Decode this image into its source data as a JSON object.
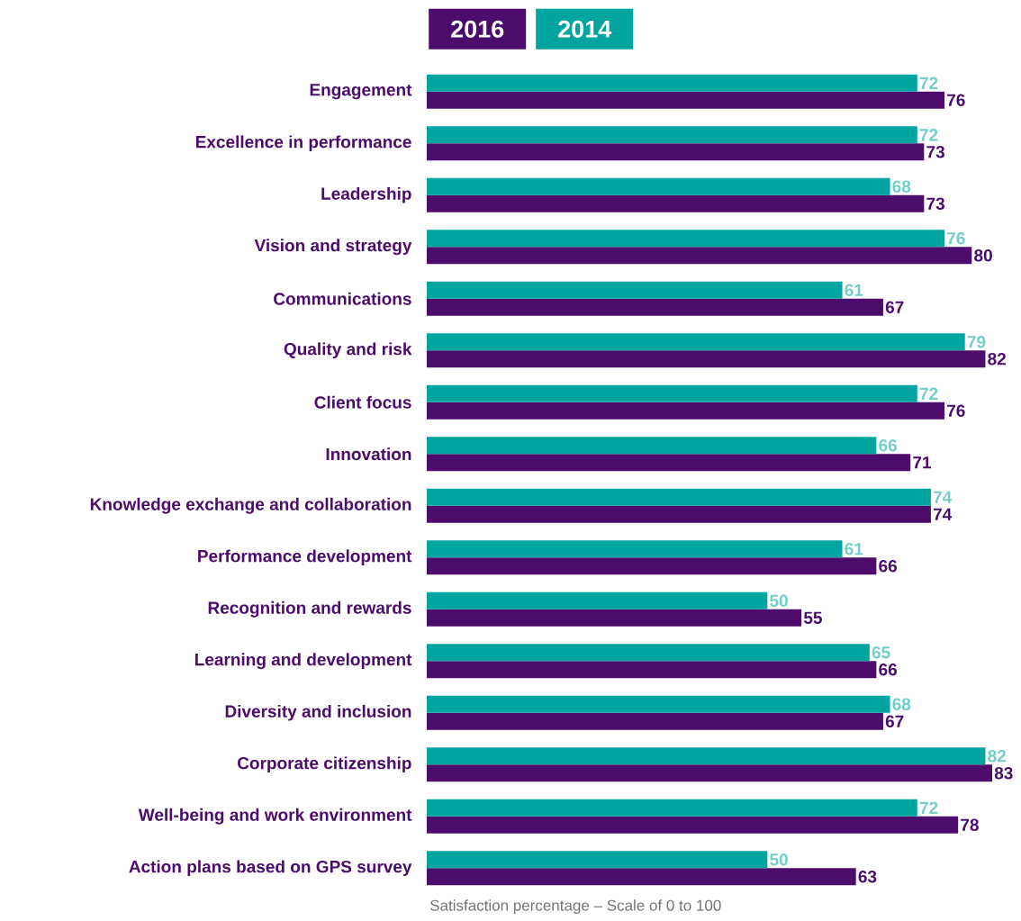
{
  "chart_data": {
    "type": "bar",
    "orientation": "horizontal",
    "categories": [
      "Engagement",
      "Excellence in performance",
      "Leadership",
      "Vision and strategy",
      "Communications",
      "Quality and risk",
      "Client focus",
      "Innovation",
      "Knowledge exchange and collaboration",
      "Performance development",
      "Recognition and rewards",
      "Learning and development",
      "Diversity and inclusion",
      "Corporate citizenship",
      "Well-being and work environment",
      "Action plans based on GPS survey"
    ],
    "series": [
      {
        "name": "2016",
        "color": "#4b0c6b",
        "values": [
          76,
          73,
          73,
          80,
          67,
          82,
          76,
          71,
          74,
          66,
          55,
          66,
          67,
          83,
          78,
          63
        ]
      },
      {
        "name": "2014",
        "color": "#00a59f",
        "values": [
          72,
          72,
          68,
          76,
          61,
          79,
          72,
          66,
          74,
          61,
          50,
          65,
          68,
          82,
          72,
          50
        ]
      }
    ],
    "data_labels": true,
    "legend": "top",
    "annotations": [
      "Satisfaction percentage – Scale of 0 to 100"
    ]
  }
}
